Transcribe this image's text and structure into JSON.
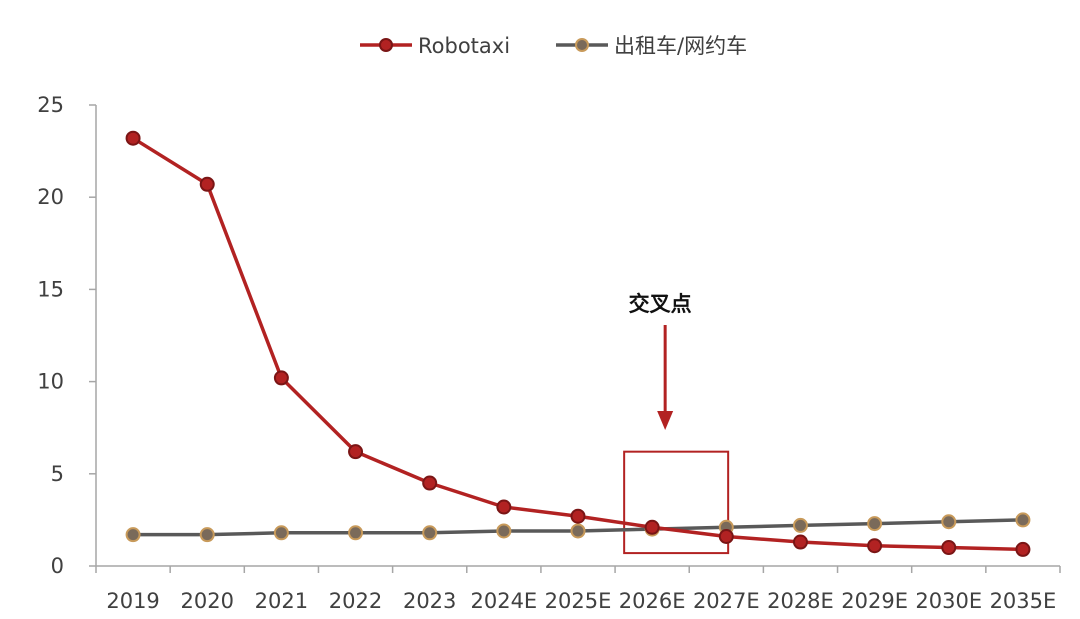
{
  "chart_data": {
    "type": "line",
    "categories": [
      "2019",
      "2020",
      "2021",
      "2022",
      "2023",
      "2024E",
      "2025E",
      "2026E",
      "2027E",
      "2028E",
      "2029E",
      "2030E",
      "2035E"
    ],
    "series": [
      {
        "name": "Robotaxi",
        "color": "#b22222",
        "marker_edge": "#7a1515",
        "values": [
          23.2,
          20.7,
          10.2,
          6.2,
          4.5,
          3.2,
          2.7,
          2.1,
          1.6,
          1.3,
          1.1,
          1.0,
          0.9
        ]
      },
      {
        "name": "出租车/网约车",
        "color": "#595959",
        "marker_fill": "#7a6a5a",
        "marker_edge": "#c89a5a",
        "values": [
          1.7,
          1.7,
          1.8,
          1.8,
          1.8,
          1.9,
          1.9,
          2.0,
          2.1,
          2.2,
          2.3,
          2.4,
          2.5
        ]
      }
    ],
    "ylim": [
      0,
      25
    ],
    "yticks": [
      0,
      5,
      10,
      15,
      20,
      25
    ],
    "legend_position": "top-center",
    "grid": false,
    "annotation": {
      "text": "交叉点",
      "target_category": "2026E",
      "color": "#b22222"
    }
  }
}
